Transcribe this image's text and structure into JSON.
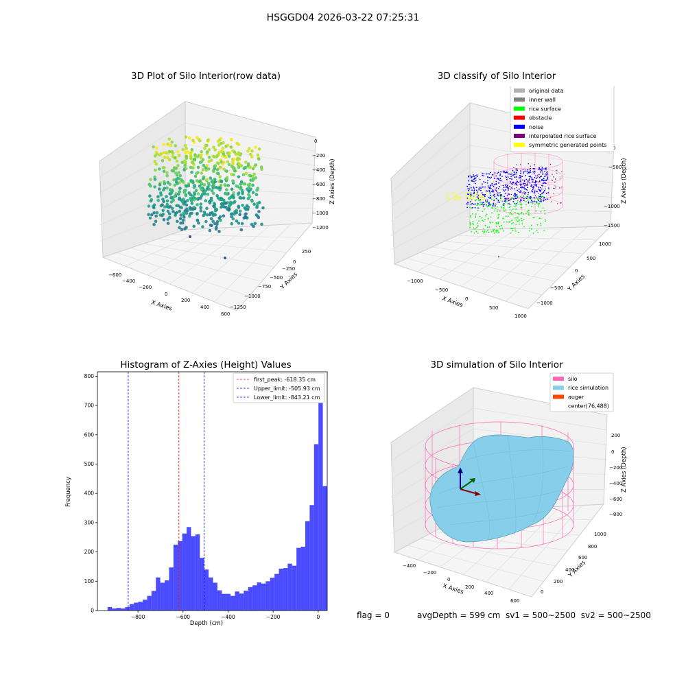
{
  "suptitle": "HSGGD04 2026-03-22 07:25:31",
  "panels": {
    "raw": {
      "title": "3D Plot of Silo Interior(row data)",
      "xlabel": "X Axies",
      "ylabel": "Y Axies",
      "zlabel": "Z Axies (Depth)",
      "xticks": [
        "−600",
        "−400",
        "−200",
        "0",
        "200",
        "400",
        "600"
      ],
      "yticks": [
        "250",
        "0",
        "−250",
        "−500",
        "−750",
        "−1000",
        "−1250"
      ],
      "zticks": [
        "0",
        "−200",
        "−400",
        "−600",
        "−800",
        "−1000",
        "−1200"
      ]
    },
    "classify": {
      "title": "3D classify of Silo Interior",
      "xlabel": "X Axies",
      "ylabel": "Y Axies",
      "zlabel": "Z Axies (Depth)",
      "xticks": [
        "−1000",
        "−500",
        "0",
        "500",
        "1000"
      ],
      "yticks": [
        "1000",
        "500",
        "0",
        "−500",
        "−1000"
      ],
      "zticks": [
        "0",
        "−500",
        "−1000",
        "−1500"
      ],
      "legend": [
        {
          "label": "original data",
          "color": "#b0b0b0"
        },
        {
          "label": "inner wall",
          "color": "#808080"
        },
        {
          "label": "rice surface",
          "color": "#00ff00"
        },
        {
          "label": "obstacle",
          "color": "#ff0000"
        },
        {
          "label": "noise",
          "color": "#0000ff"
        },
        {
          "label": "interpolated rice surface",
          "color": "#800080"
        },
        {
          "label": "symmetric generated points",
          "color": "#ffff00"
        }
      ]
    },
    "simulation": {
      "title": "3D simulation of Silo Interior",
      "xlabel": "X Axies",
      "ylabel": "Y Axies",
      "zlabel": "Z Axies (Depth)",
      "xticks": [
        "−400",
        "−200",
        "0",
        "200",
        "400",
        "600"
      ],
      "yticks": [
        "1000",
        "800",
        "600",
        "400",
        "200",
        "0"
      ],
      "zticks": [
        "200",
        "0",
        "−200",
        "−400",
        "−600",
        "−800"
      ],
      "legend": [
        {
          "label": "silo",
          "color": "#ff69b4"
        },
        {
          "label": "rice simulation",
          "color": "#87ceeb"
        },
        {
          "label": "auger",
          "color": "#ff4500"
        },
        {
          "label": "center(76,488)",
          "color": ""
        }
      ]
    }
  },
  "footer": {
    "flag": "flag = 0",
    "stats": "avgDepth = 599 cm  sv1 = 500~2500  sv2 = 500~2500"
  },
  "chart_data": {
    "type": "bar",
    "title": "Histogram of Z-Axies (Height) Values",
    "xlabel": "Depth (cm)",
    "ylabel": "Frequency",
    "xlim": [
      -980,
      40
    ],
    "ylim": [
      0,
      815
    ],
    "xticks": [
      -800,
      -600,
      -400,
      -200,
      0
    ],
    "xtick_labels": [
      "−800",
      "−600",
      "−400",
      "−200",
      "0"
    ],
    "yticks": [
      0,
      100,
      200,
      300,
      400,
      500,
      600,
      700,
      800
    ],
    "bin_start": -935,
    "bin_width": 19.5,
    "values": [
      12,
      7,
      9,
      7,
      12,
      22,
      27,
      30,
      37,
      50,
      67,
      113,
      95,
      103,
      147,
      225,
      237,
      263,
      285,
      254,
      260,
      180,
      140,
      113,
      95,
      69,
      57,
      57,
      50,
      65,
      58,
      68,
      80,
      86,
      96,
      92,
      100,
      112,
      125,
      143,
      145,
      160,
      153,
      214,
      218,
      305,
      360,
      568,
      770,
      425
    ],
    "bar_color": "#0000ff",
    "lines": [
      {
        "label": "first_peak: -618.35 cm",
        "x": -618.35,
        "color": "#ff0000"
      },
      {
        "label": "Upper_limit: -505.93 cm",
        "x": -505.93,
        "color": "#0000ff"
      },
      {
        "label": "Lower_limit: -843.21 cm",
        "x": -843.21,
        "color": "#0000ff"
      }
    ]
  }
}
